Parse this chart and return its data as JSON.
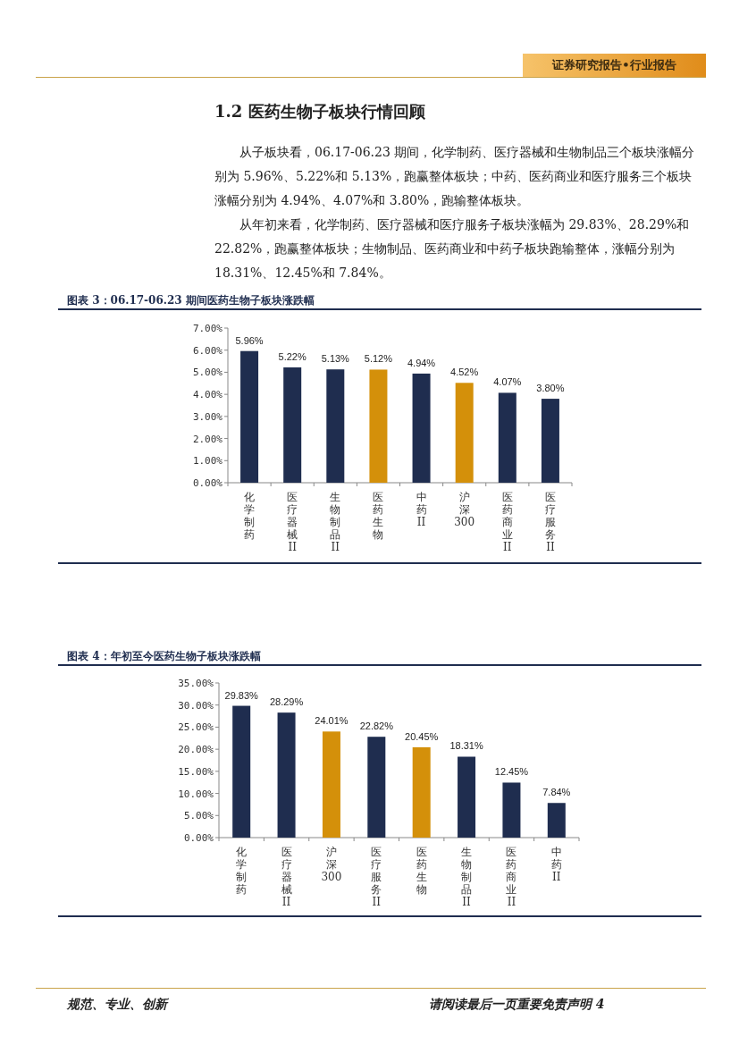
{
  "chart_data": [
    {
      "type": "bar",
      "title": "图表 3：06.17-06.23 期间医药生物子板块涨跌幅",
      "categories": [
        "化学制药",
        "医疗器械II",
        "生物制品II",
        "医药生物",
        "中药II",
        "沪深300",
        "医药商业II",
        "医疗服务II"
      ],
      "values": [
        5.96,
        5.22,
        5.13,
        5.12,
        4.94,
        4.52,
        4.07,
        3.8
      ],
      "colors": [
        "#1f2d4f",
        "#1f2d4f",
        "#1f2d4f",
        "#d4900a",
        "#1f2d4f",
        "#d4900a",
        "#1f2d4f",
        "#1f2d4f"
      ],
      "value_labels": [
        "5.96%",
        "5.22%",
        "5.13%",
        "5.12%",
        "4.94%",
        "4.52%",
        "4.07%",
        "3.80%"
      ],
      "ylim": [
        0,
        7
      ],
      "yticks": [
        {
          "value": 0,
          "label": "0.00%"
        },
        {
          "value": 1,
          "label": "1.00%"
        },
        {
          "value": 2,
          "label": "2.00%"
        },
        {
          "value": 3,
          "label": "3.00%"
        },
        {
          "value": 4,
          "label": "4.00%"
        },
        {
          "value": 5,
          "label": "5.00%"
        },
        {
          "value": 6,
          "label": "6.00%"
        },
        {
          "value": 7,
          "label": "7.00%"
        }
      ],
      "annotations": [
        "证券研究报告•行业报告",
        "1.2 医药生物子板块行情回顾",
        "从子板块看，06.17-06.23 期间，化学制药、医疗器械和生物制品三个板块涨幅分别为 5.96%、5.22%和 5.13%，跑赢整体板块；中药、医药商业和医疗服务三个板块涨幅分别为 4.94%、4.07%和 3.80%，跑输整体板块。",
        "从年初来看，化学制药、医疗器械和医疗服务子板块涨幅为 29.83%、28.29%和 22.82%，跑赢整体板块；生物制品、医药商业和中药子板块跑输整体，涨幅分别为 18.31%、12.45%和 7.84%。"
      ]
    },
    {
      "type": "bar",
      "title": "图表 4：年初至今医药生物子板块涨跌幅",
      "categories": [
        "化学制药",
        "医疗器械II",
        "沪深300",
        "医疗服务II",
        "医药生物",
        "生物制品II",
        "医药商业II",
        "中药II"
      ],
      "values": [
        29.83,
        28.29,
        24.01,
        22.82,
        20.45,
        18.31,
        12.45,
        7.84
      ],
      "colors": [
        "#1f2d4f",
        "#1f2d4f",
        "#d4900a",
        "#1f2d4f",
        "#d4900a",
        "#1f2d4f",
        "#1f2d4f",
        "#1f2d4f"
      ],
      "value_labels": [
        "29.83%",
        "28.29%",
        "24.01%",
        "22.82%",
        "20.45%",
        "18.31%",
        "12.45%",
        "7.84%"
      ],
      "ylim": [
        0,
        35
      ],
      "yticks": [
        {
          "value": 0,
          "label": "0.00%"
        },
        {
          "value": 5,
          "label": "5.00%"
        },
        {
          "value": 10,
          "label": "10.00%"
        },
        {
          "value": 15,
          "label": "15.00%"
        },
        {
          "value": 20,
          "label": "20.00%"
        },
        {
          "value": 25,
          "label": "25.00%"
        },
        {
          "value": 30,
          "label": "30.00%"
        },
        {
          "value": 35,
          "label": "35.00%"
        }
      ],
      "annotations": [
        "规范、专业、创新",
        "请阅读最后一页重要免责声明 4"
      ]
    }
  ]
}
